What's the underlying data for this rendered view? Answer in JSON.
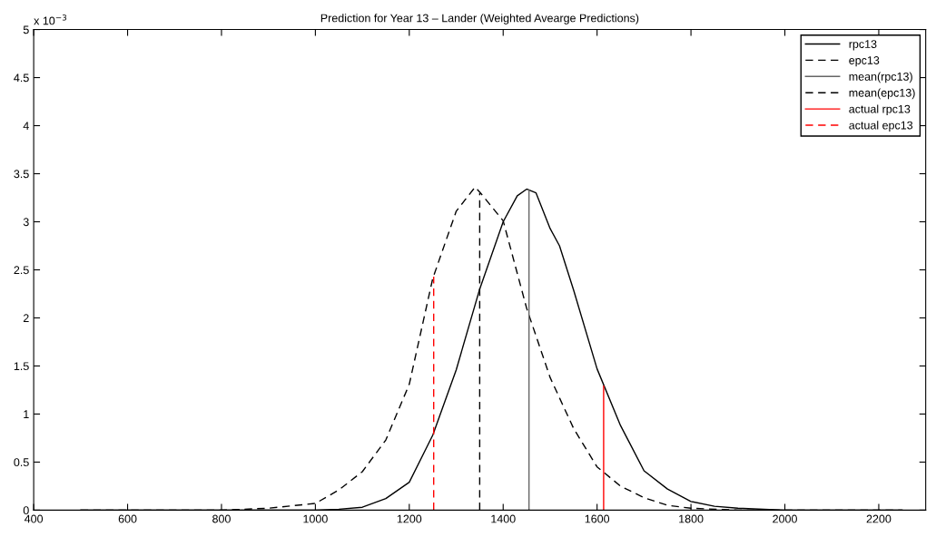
{
  "chart_data": {
    "type": "line",
    "title": "Prediction for Year 13 – Lander (Weighted Avearge Predictions)",
    "annotations": [
      "x 10$^{−3}$"
    ],
    "xlim": [
      400,
      2300
    ],
    "xticks": [
      400,
      600,
      800,
      1000,
      1200,
      1400,
      1600,
      1800,
      2000,
      2200
    ],
    "ylim": [
      0,
      5
    ],
    "yticks": [
      0,
      0.5,
      1,
      1.5,
      2,
      2.5,
      3,
      3.5,
      4,
      4.5,
      5
    ],
    "grid": false,
    "legend": "top right",
    "series": [
      {
        "name": "rpc13",
        "color": "#000000",
        "line_style": "solid",
        "x": [
          500,
          800,
          1000,
          1050,
          1100,
          1150,
          1200,
          1250,
          1300,
          1350,
          1400,
          1430,
          1450,
          1470,
          1500,
          1520,
          1550,
          1600,
          1650,
          1700,
          1750,
          1800,
          1850,
          1900,
          2000,
          2100,
          2250
        ],
        "values": [
          0,
          0,
          0,
          0.01,
          0.03,
          0.12,
          0.29,
          0.78,
          1.46,
          2.3,
          3.0,
          3.27,
          3.34,
          3.3,
          2.93,
          2.75,
          2.29,
          1.47,
          0.88,
          0.41,
          0.22,
          0.09,
          0.04,
          0.02,
          0,
          0,
          0
        ]
      },
      {
        "name": "epc13",
        "color": "#000000",
        "line_style": "dashed",
        "x": [
          500,
          800,
          900,
          1000,
          1050,
          1100,
          1150,
          1200,
          1250,
          1300,
          1340,
          1350,
          1400,
          1450,
          1500,
          1550,
          1600,
          1650,
          1700,
          1750,
          1800,
          1900,
          2000,
          2250
        ],
        "values": [
          0,
          0,
          0.02,
          0.07,
          0.21,
          0.4,
          0.73,
          1.31,
          2.41,
          3.11,
          3.36,
          3.31,
          3.01,
          2.1,
          1.38,
          0.85,
          0.45,
          0.25,
          0.13,
          0.05,
          0.02,
          0,
          0,
          0
        ]
      },
      {
        "name": "mean(rpc13)",
        "color": "#666666",
        "line_style": "solid",
        "x": [
          1455,
          1455
        ],
        "values": [
          0,
          3.33
        ]
      },
      {
        "name": "mean(epc13)",
        "color": "#000000",
        "line_style": "dashed",
        "x": [
          1350,
          1350
        ],
        "values": [
          0,
          3.3
        ]
      },
      {
        "name": "actual rpc13",
        "color": "#ff0000",
        "line_style": "solid",
        "x": [
          1614,
          1614
        ],
        "values": [
          0,
          1.29
        ]
      },
      {
        "name": "actual epc13",
        "color": "#ff0000",
        "line_style": "dashed",
        "x": [
          1252,
          1252
        ],
        "values": [
          0,
          2.43
        ]
      }
    ]
  }
}
